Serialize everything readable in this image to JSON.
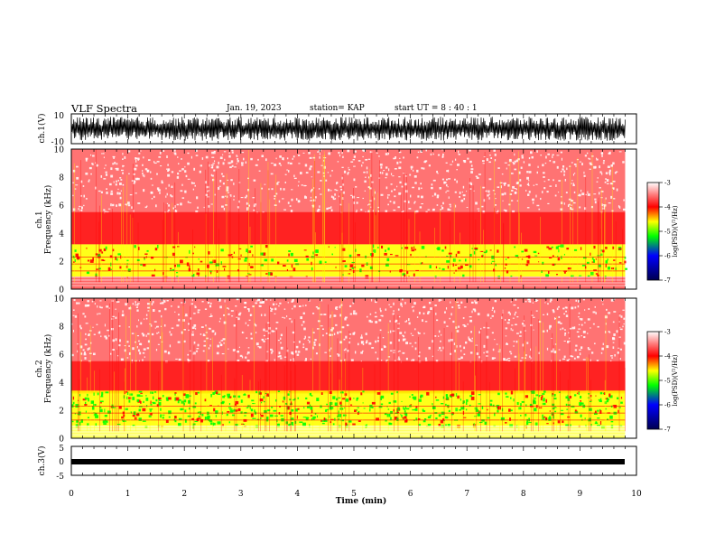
{
  "header": {
    "title": "VLF Spectra",
    "date": "Jan. 19, 2023",
    "station": "station= KAP",
    "start": "start  UT =   8 : 40 : 1"
  },
  "chart_data": [
    {
      "type": "line",
      "name": "ch1-waveform",
      "ylabel": "ch.1(V)",
      "ylim": [
        -10,
        10
      ],
      "ytick_labels": [
        "10",
        "-10"
      ],
      "xlim": [
        0,
        10
      ],
      "note": "dense oscillating waveform, amplitude roughly 2 to 8 V, filling 0 to about 9.8 min"
    },
    {
      "type": "heatmap",
      "name": "ch1-spectrogram",
      "ylabel": "ch.1 Frequency (kHz)",
      "ylim": [
        0,
        10
      ],
      "ytick_labels": [
        "0",
        "2",
        "4",
        "6",
        "8",
        "10"
      ],
      "xlim": [
        0,
        10
      ],
      "data_end_min": 9.8,
      "bands": [
        {
          "f_low": 0.0,
          "f_high": 0.9,
          "level": "mixed red/white with horizontal lines"
        },
        {
          "f_low": 0.9,
          "f_high": 3.2,
          "level": "-4.5 to -5 (yellow/green)"
        },
        {
          "f_low": 3.2,
          "f_high": 5.5,
          "level": "-4 (red)"
        },
        {
          "f_low": 5.5,
          "f_high": 10.0,
          "level": "-3.5 to -4 (red speckle on white)"
        }
      ],
      "colorbar": {
        "label": "log(PSD)(V²/Hz)",
        "range": [
          -7,
          -3
        ],
        "tick_labels": [
          "-3",
          "-4",
          "-5",
          "-6",
          "-7"
        ]
      }
    },
    {
      "type": "heatmap",
      "name": "ch2-spectrogram",
      "ylabel": "ch.2 Frequency (kHz)",
      "ylim": [
        0,
        10
      ],
      "ytick_labels": [
        "0",
        "2",
        "4",
        "6",
        "8",
        "10"
      ],
      "xlim": [
        0,
        10
      ],
      "data_end_min": 9.8,
      "bands": [
        {
          "f_low": 0.0,
          "f_high": 0.9,
          "level": "mixed yellow/red with horizontal lines"
        },
        {
          "f_low": 0.9,
          "f_high": 3.4,
          "level": "-5 to -5.5 (green/yellow)"
        },
        {
          "f_low": 3.4,
          "f_high": 5.5,
          "level": "-4 (red)"
        },
        {
          "f_low": 5.5,
          "f_high": 10.0,
          "level": "-3.5 to -4 (red speckle)"
        }
      ],
      "colorbar": {
        "label": "log(PSD)(V²/Hz)",
        "range": [
          -7,
          -3
        ],
        "tick_labels": [
          "-3",
          "-4",
          "-5",
          "-6",
          "-7"
        ]
      }
    },
    {
      "type": "line",
      "name": "ch3-waveform",
      "ylabel": "ch.3(V)",
      "ylim": [
        -5,
        5
      ],
      "ytick_labels": [
        "5",
        "0",
        "-5"
      ],
      "xlim": [
        0,
        10
      ],
      "note": "nearly constant trace near -0.5 V with small thickness, 0 to about 9.8 min"
    }
  ],
  "xaxis": {
    "label": "Time (min)",
    "tick_labels": [
      "0",
      "1",
      "2",
      "3",
      "4",
      "5",
      "6",
      "7",
      "8",
      "9",
      "10"
    ]
  },
  "colors": {
    "white": "#ffffff",
    "red": "#ff0000",
    "yellow": "#ffff00",
    "green": "#00ff00",
    "blue": "#0000ff",
    "navy": "#000050"
  }
}
